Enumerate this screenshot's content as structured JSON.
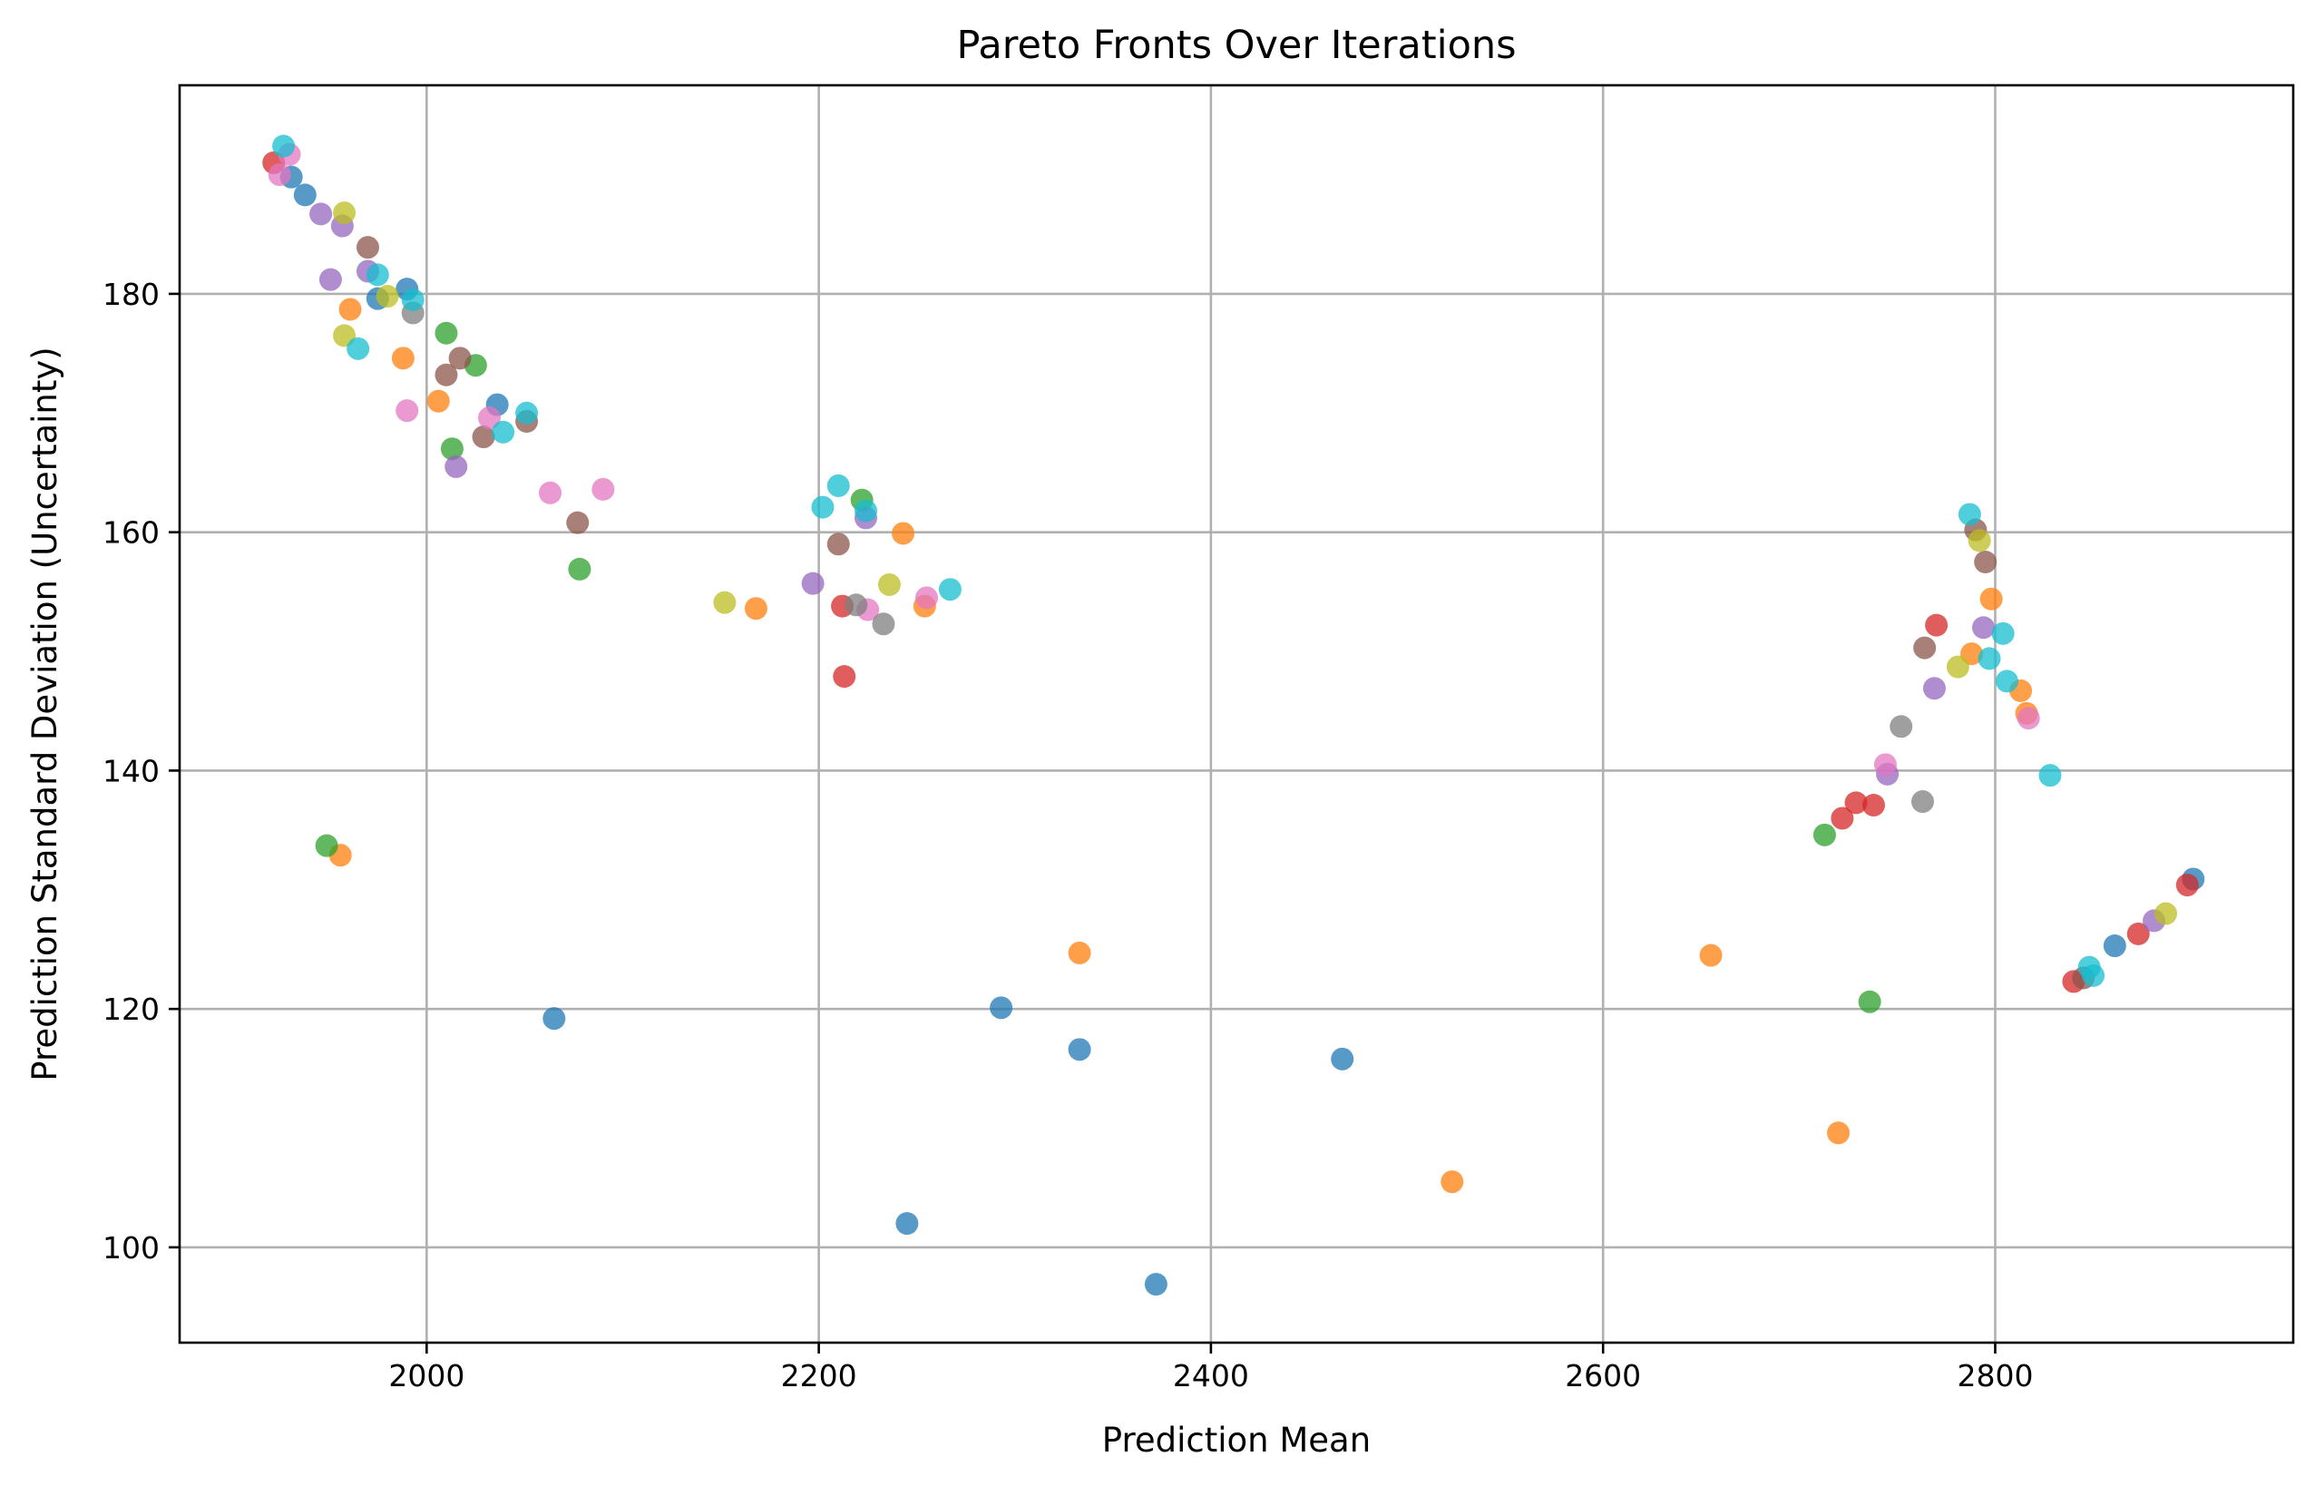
{
  "chart_data": {
    "type": "scatter",
    "title": "Pareto Fronts Over Iterations",
    "xlabel": "Prediction Mean",
    "ylabel": "Prediction Standard Deviation (Uncertainty)",
    "xlim": [
      1874,
      2952
    ],
    "ylim": [
      92,
      197.5
    ],
    "xticks": [
      2000,
      2200,
      2400,
      2600,
      2800
    ],
    "yticks": [
      100,
      120,
      140,
      160,
      180
    ],
    "grid": true,
    "marker_opacity": 0.75,
    "series": [
      {
        "color": "#1f77b4",
        "points": [
          [
            2065,
            119.2
          ],
          [
            2245,
            102.0
          ],
          [
            2293,
            120.1
          ],
          [
            2333,
            116.6
          ],
          [
            2372,
            96.9
          ],
          [
            2467,
            115.8
          ],
          [
            1931,
            189.8
          ],
          [
            1938,
            188.3
          ],
          [
            1975,
            179.6
          ],
          [
            1990,
            180.4
          ],
          [
            2036,
            170.7
          ],
          [
            2861,
            125.3
          ],
          [
            2901,
            130.9
          ]
        ]
      },
      {
        "color": "#ff7f0e",
        "points": [
          [
            1956,
            132.9
          ],
          [
            2243,
            159.9
          ],
          [
            2333,
            124.7
          ],
          [
            2720,
            109.6
          ],
          [
            1961,
            178.7
          ],
          [
            1988,
            174.6
          ],
          [
            2006,
            171.0
          ],
          [
            2168,
            153.6
          ],
          [
            2254,
            153.8
          ],
          [
            2655,
            124.5
          ],
          [
            2523,
            105.5
          ],
          [
            2798,
            154.4
          ],
          [
            2788,
            149.8
          ],
          [
            2813,
            146.7
          ],
          [
            2816,
            144.8
          ]
        ]
      },
      {
        "color": "#2ca02c",
        "points": [
          [
            1949,
            133.7
          ],
          [
            2713,
            134.6
          ],
          [
            2736,
            120.6
          ],
          [
            2010,
            176.7
          ],
          [
            2013,
            167.0
          ],
          [
            2025,
            174.0
          ],
          [
            2078,
            156.9
          ],
          [
            2222,
            162.7
          ]
        ]
      },
      {
        "color": "#d62728",
        "points": [
          [
            1922,
            191.0
          ],
          [
            2722,
            136.0
          ],
          [
            2729,
            137.3
          ],
          [
            2738,
            137.1
          ],
          [
            2770,
            152.2
          ],
          [
            2213,
            147.9
          ],
          [
            2212,
            153.8
          ],
          [
            2840,
            122.3
          ],
          [
            2873,
            126.3
          ],
          [
            2898,
            130.4
          ]
        ]
      },
      {
        "color": "#9467bd",
        "points": [
          [
            1946,
            186.7
          ],
          [
            1951,
            181.2
          ],
          [
            1957,
            185.7
          ],
          [
            1970,
            181.9
          ],
          [
            2015,
            165.5
          ],
          [
            2197,
            155.7
          ],
          [
            2224,
            161.2
          ],
          [
            2745,
            139.7
          ],
          [
            2769,
            146.9
          ],
          [
            2794,
            152.0
          ],
          [
            2881,
            127.4
          ]
        ]
      },
      {
        "color": "#8c564b",
        "points": [
          [
            1970,
            183.9
          ],
          [
            2010,
            173.2
          ],
          [
            2017,
            174.6
          ],
          [
            2029,
            168.0
          ],
          [
            2051,
            169.3
          ],
          [
            2077,
            160.8
          ],
          [
            2210,
            159.0
          ],
          [
            2764,
            150.3
          ],
          [
            2795,
            157.5
          ],
          [
            2790,
            160.2
          ],
          [
            2845,
            122.6
          ]
        ]
      },
      {
        "color": "#e377c2",
        "points": [
          [
            1925,
            190.0
          ],
          [
            1930,
            191.7
          ],
          [
            1990,
            170.2
          ],
          [
            2032,
            169.6
          ],
          [
            2063,
            163.3
          ],
          [
            2090,
            163.6
          ],
          [
            2225,
            153.5
          ],
          [
            2255,
            154.5
          ],
          [
            2744,
            140.5
          ],
          [
            2817,
            144.4
          ]
        ]
      },
      {
        "color": "#7f7f7f",
        "points": [
          [
            1993,
            178.4
          ],
          [
            2233,
            152.3
          ],
          [
            2752,
            143.7
          ],
          [
            2763,
            137.4
          ],
          [
            2219,
            153.9
          ]
        ]
      },
      {
        "color": "#bcbd22",
        "points": [
          [
            1958,
            176.5
          ],
          [
            1958,
            186.8
          ],
          [
            1980,
            179.8
          ],
          [
            2152,
            154.1
          ],
          [
            2236,
            155.6
          ],
          [
            2781,
            148.7
          ],
          [
            2792,
            159.3
          ],
          [
            2887,
            128.0
          ]
        ]
      },
      {
        "color": "#17becf",
        "points": [
          [
            1927,
            192.4
          ],
          [
            1965,
            175.4
          ],
          [
            1975,
            181.6
          ],
          [
            1993,
            179.5
          ],
          [
            2039,
            168.4
          ],
          [
            2051,
            170.0
          ],
          [
            2202,
            162.1
          ],
          [
            2210,
            163.9
          ],
          [
            2224,
            161.8
          ],
          [
            2267,
            155.2
          ],
          [
            2787,
            161.5
          ],
          [
            2797,
            149.4
          ],
          [
            2804,
            151.5
          ],
          [
            2806,
            147.5
          ],
          [
            2828,
            139.6
          ],
          [
            2848,
            123.5
          ],
          [
            2850,
            122.8
          ]
        ]
      }
    ]
  }
}
